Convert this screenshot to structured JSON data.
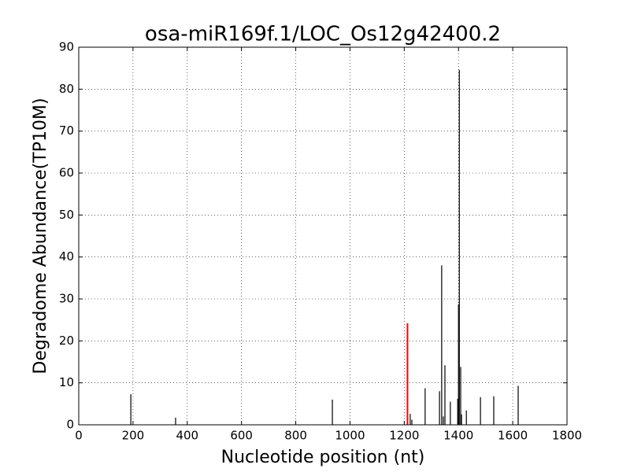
{
  "chart_data": {
    "type": "vlines",
    "title": "osa-miR169f.1/LOC_Os12g42400.2",
    "x_label": "Nucleotide position (nt)",
    "y_label": "Degradome Abundance(TP10M)",
    "series": [
      {
        "color": "#000000",
        "x": [
          192,
          357,
          935,
          1222,
          1228,
          1277,
          1330,
          1338,
          1344,
          1350,
          1370,
          1397,
          1400,
          1403,
          1408,
          1411,
          1429,
          1481,
          1530,
          1620
        ],
        "values": [
          7.3,
          1.7,
          6.0,
          2.6,
          1.2,
          8.7,
          8.0,
          38.0,
          2.0,
          14.2,
          5.5,
          6.2,
          28.7,
          84.6,
          13.8,
          2.5,
          3.4,
          6.6,
          6.8,
          9.3
        ]
      },
      {
        "color": "#ff0000",
        "x": [
          1212
        ],
        "values": [
          24.2
        ]
      }
    ],
    "xlim": [
      0,
      1800
    ],
    "xticks": [
      0,
      200,
      400,
      600,
      800,
      1000,
      1200,
      1400,
      1600,
      1800
    ],
    "ylim": [
      0,
      90
    ],
    "yticks": [
      0,
      10,
      20,
      30,
      40,
      50,
      60,
      70,
      80,
      90
    ],
    "grid": true
  }
}
